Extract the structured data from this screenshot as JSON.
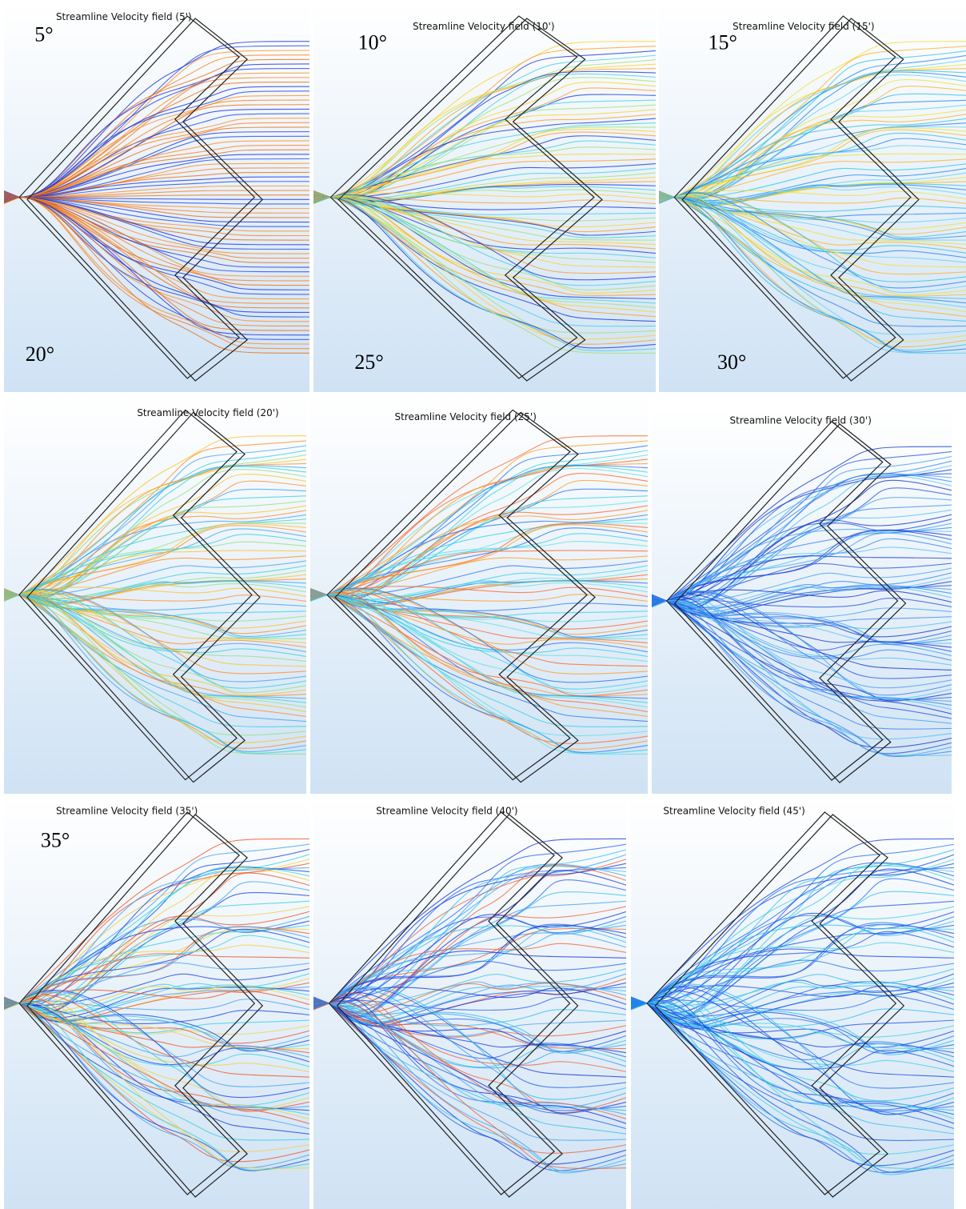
{
  "panels": [
    {
      "title": "Streamline Velocity field (5')",
      "labels": [
        "5°",
        "20°"
      ]
    },
    {
      "title": "Streamline Velocity field (10')",
      "labels": [
        "10°",
        "25°"
      ]
    },
    {
      "title": "Streamline Velocity field (15')",
      "labels": [
        "15°",
        "30°"
      ]
    },
    {
      "title": "Streamline Velocity field (20')",
      "labels": []
    },
    {
      "title": "Streamline Velocity field (25')",
      "labels": []
    },
    {
      "title": "Streamline Velocity field (30')",
      "labels": []
    },
    {
      "title": "Streamline Velocity field (35')",
      "labels": [
        "35°"
      ]
    },
    {
      "title": "Streamline Velocity field (40')",
      "labels": []
    },
    {
      "title": "Streamline Velocity field (45')",
      "labels": []
    }
  ]
}
